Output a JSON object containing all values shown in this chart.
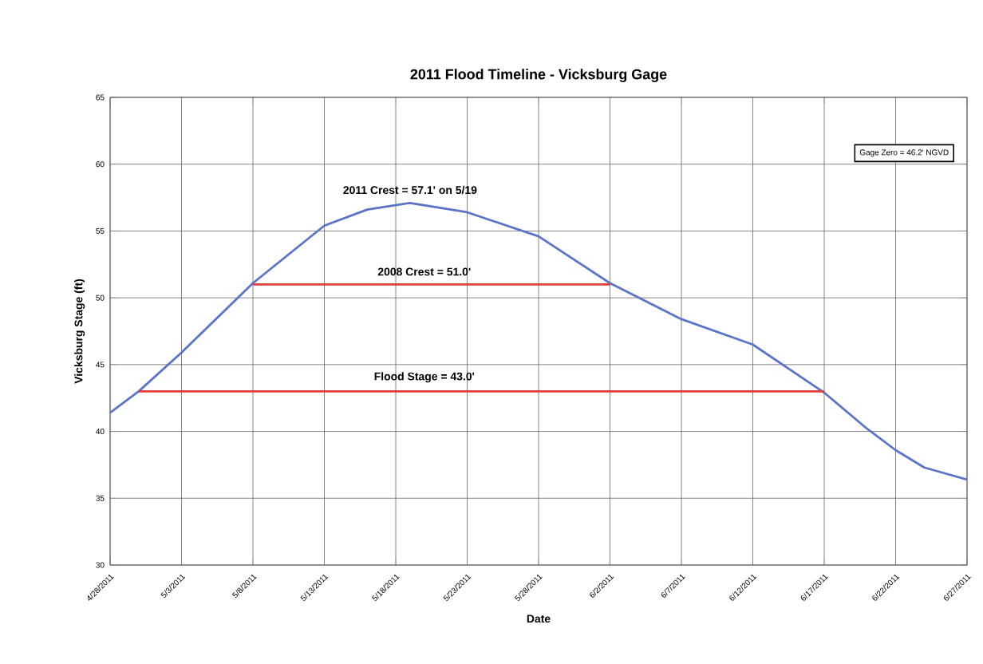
{
  "chart_data": {
    "type": "line",
    "title": "2011 Flood Timeline - Vicksburg Gage",
    "xlabel": "Date",
    "ylabel": "Vicksburg Stage (ft)",
    "xlim": [
      "2011-04-28",
      "2011-06-27"
    ],
    "ylim": [
      30,
      65
    ],
    "yticks": [
      30,
      35,
      40,
      45,
      50,
      55,
      60,
      65
    ],
    "xticks": [
      {
        "value": "2011-04-28",
        "label": "4/28/2011"
      },
      {
        "value": "2011-05-03",
        "label": "5/3/2011"
      },
      {
        "value": "2011-05-08",
        "label": "5/8/2011"
      },
      {
        "value": "2011-05-13",
        "label": "5/13/2011"
      },
      {
        "value": "2011-05-18",
        "label": "5/18/2011"
      },
      {
        "value": "2011-05-23",
        "label": "5/23/2011"
      },
      {
        "value": "2011-05-28",
        "label": "5/28/2011"
      },
      {
        "value": "2011-06-02",
        "label": "6/2/2011"
      },
      {
        "value": "2011-06-07",
        "label": "6/7/2011"
      },
      {
        "value": "2011-06-12",
        "label": "6/12/2011"
      },
      {
        "value": "2011-06-17",
        "label": "6/17/2011"
      },
      {
        "value": "2011-06-22",
        "label": "6/22/2011"
      },
      {
        "value": "2011-06-27",
        "label": "6/27/2011"
      }
    ],
    "grid": true,
    "series": [
      {
        "color": "#5b74c8",
        "x": [
          "2011-04-28",
          "2011-04-30",
          "2011-05-03",
          "2011-05-08",
          "2011-05-13",
          "2011-05-16",
          "2011-05-19",
          "2011-05-23",
          "2011-05-28",
          "2011-06-02",
          "2011-06-07",
          "2011-06-12",
          "2011-06-17",
          "2011-06-20",
          "2011-06-22",
          "2011-06-24",
          "2011-06-27"
        ],
        "values": [
          41.4,
          43,
          45.9,
          51.1,
          55.4,
          56.6,
          57.1,
          56.4,
          54.6,
          51.1,
          48.4,
          46.5,
          42.9,
          40.2,
          38.6,
          37.3,
          36.4
        ]
      },
      {
        "color": "#e0403a",
        "x": [
          "2011-05-08",
          "2011-06-02"
        ],
        "values": [
          51,
          51
        ]
      },
      {
        "color": "#e0403a",
        "x": [
          "2011-04-30",
          "2011-06-17"
        ],
        "values": [
          43,
          43
        ]
      }
    ],
    "annotations": [
      {
        "text": "2011 Crest = 57.1' on 5/19",
        "x": "2011-05-19",
        "y": 57.1
      },
      {
        "text": "2008 Crest = 51.0'",
        "x": "2011-05-20",
        "y": 51
      },
      {
        "text": "Flood Stage = 43.0'",
        "x": "2011-05-20",
        "y": 43
      },
      "Gage Zero = 46.2' NGVD"
    ]
  }
}
